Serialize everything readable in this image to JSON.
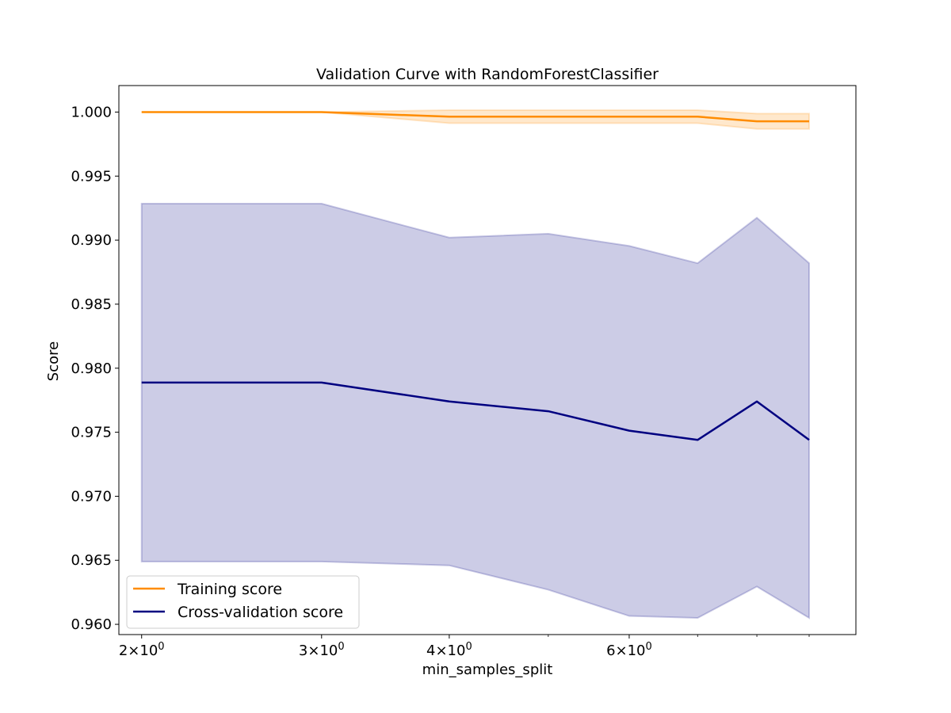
{
  "chart_data": {
    "type": "line",
    "title": "Validation Curve with RandomForestClassifier",
    "xlabel": "min_samples_split",
    "ylabel": "Score",
    "x_scale": "log",
    "x": [
      2,
      3,
      4,
      5,
      6,
      7,
      8,
      9
    ],
    "xlim": [
      1.9,
      10.0
    ],
    "ylim": [
      0.9592,
      1.00207
    ],
    "x_ticks": [
      {
        "value": 2,
        "base": "2",
        "mult": "×",
        "pow10": "10",
        "exp": "0"
      },
      {
        "value": 3,
        "base": "3",
        "mult": "×",
        "pow10": "10",
        "exp": "0"
      },
      {
        "value": 4,
        "base": "4",
        "mult": "×",
        "pow10": "10",
        "exp": "0"
      },
      {
        "value": 6,
        "base": "6",
        "mult": "×",
        "pow10": "10",
        "exp": "0"
      }
    ],
    "x_minor_ticks": [
      5,
      7,
      8,
      9
    ],
    "y_ticks": [
      {
        "value": 0.96,
        "label": "0.960"
      },
      {
        "value": 0.965,
        "label": "0.965"
      },
      {
        "value": 0.97,
        "label": "0.970"
      },
      {
        "value": 0.975,
        "label": "0.975"
      },
      {
        "value": 0.98,
        "label": "0.980"
      },
      {
        "value": 0.985,
        "label": "0.985"
      },
      {
        "value": 0.99,
        "label": "0.990"
      },
      {
        "value": 0.995,
        "label": "0.995"
      },
      {
        "value": 1.0,
        "label": "1.000"
      }
    ],
    "series": [
      {
        "name": "Training score",
        "color": "#ff8c00",
        "band_color": "#ff8c00",
        "band_opacity": 0.2,
        "values": [
          1.0,
          1.0,
          0.99964,
          0.99964,
          0.99964,
          0.99964,
          0.99928,
          0.99928
        ],
        "lower": [
          1.0,
          1.0,
          0.99913,
          0.99913,
          0.99913,
          0.99913,
          0.99868,
          0.99868
        ],
        "upper": [
          1.0,
          1.0,
          1.00015,
          1.00015,
          1.00015,
          1.00015,
          0.99988,
          0.99988
        ]
      },
      {
        "name": "Cross-validation score",
        "color": "#000080",
        "band_color": "#000080",
        "band_opacity": 0.2,
        "values": [
          0.97888,
          0.97888,
          0.9774,
          0.97664,
          0.97512,
          0.9744,
          0.9774,
          0.9744
        ],
        "lower": [
          0.9649,
          0.9649,
          0.9646,
          0.9627,
          0.96065,
          0.9605,
          0.96295,
          0.9605
        ],
        "upper": [
          0.99285,
          0.99285,
          0.9902,
          0.9905,
          0.98955,
          0.9882,
          0.99175,
          0.9882
        ]
      }
    ],
    "legend_position": "lower-left",
    "grid": false
  }
}
